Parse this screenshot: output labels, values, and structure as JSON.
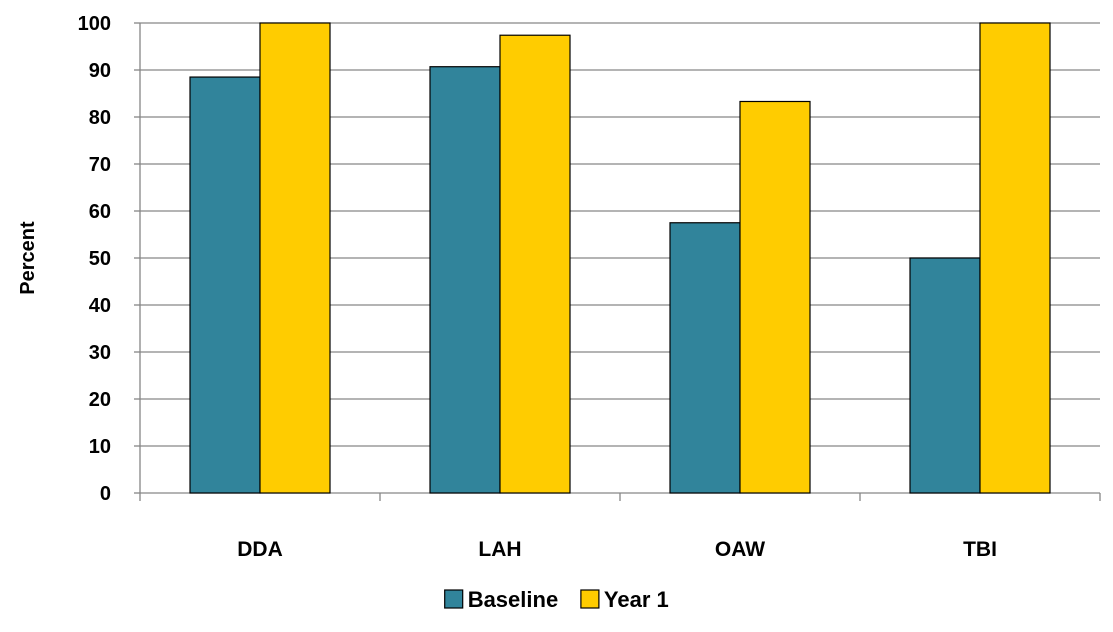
{
  "chart_data": {
    "type": "bar",
    "categories": [
      "DDA",
      "LAH",
      "OAW",
      "TBI"
    ],
    "series": [
      {
        "name": "Baseline",
        "values": [
          88.5,
          90.7,
          57.5,
          50.0
        ],
        "color": "#31849B"
      },
      {
        "name": "Year 1",
        "values": [
          100,
          97.4,
          83.3,
          100
        ],
        "color": "#FFCC00"
      }
    ],
    "title": "",
    "xlabel": "",
    "ylabel": "Percent",
    "ylim": [
      0,
      100
    ],
    "yticks": [
      0,
      10,
      20,
      30,
      40,
      50,
      60,
      70,
      80,
      90,
      100
    ],
    "grid": true,
    "legend": "bottom"
  }
}
